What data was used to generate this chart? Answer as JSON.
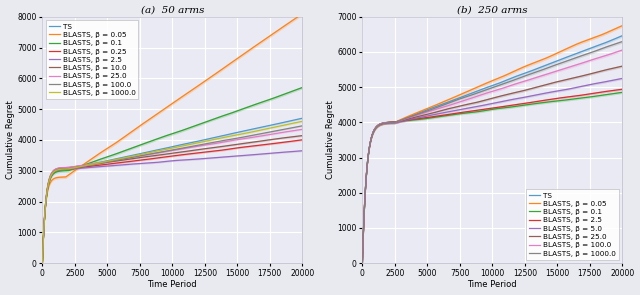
{
  "fig_width": 6.4,
  "fig_height": 2.95,
  "dpi": 100,
  "background_color": "#e8eaf0",
  "subplot_bg": "#eaeaf4",
  "grid_color": "white",
  "T": 20000,
  "subplot_a": {
    "title": "(a)  50 arms",
    "ylabel": "Cumulative Regret",
    "xlabel": "Time Period",
    "ylim": [
      0,
      8000
    ],
    "xlim": [
      0,
      20000
    ],
    "yticks": [
      0,
      1000,
      2000,
      3000,
      4000,
      5000,
      6000,
      7000,
      8000
    ],
    "xticks": [
      0,
      2500,
      5000,
      7500,
      10000,
      12500,
      15000,
      17500,
      20000
    ],
    "series": [
      {
        "label": "TS",
        "color": "#4c96c8",
        "knee": 3050,
        "knee_t": 2000,
        "final": 4700,
        "slope": 0.05,
        "band": 60
      },
      {
        "label": "BLASTS, β = 0.05",
        "color": "#ff7f0e",
        "knee": 2800,
        "knee_t": 1800,
        "final": 8100,
        "slope": 0.35,
        "band": 100
      },
      {
        "label": "BLASTS, β = 0.1",
        "color": "#2ca02c",
        "knee": 3000,
        "knee_t": 2000,
        "final": 5700,
        "slope": 0.18,
        "band": 90
      },
      {
        "label": "BLASTS, β = 0.25",
        "color": "#d62728",
        "knee": 3050,
        "knee_t": 2000,
        "final": 4000,
        "slope": 0.05,
        "band": 60
      },
      {
        "label": "BLASTS, β = 2.5",
        "color": "#9467bd",
        "knee": 3050,
        "knee_t": 2000,
        "final": 3650,
        "slope": 0.03,
        "band": 55
      },
      {
        "label": "BLASTS, β = 10.0",
        "color": "#8c564b",
        "knee": 3100,
        "knee_t": 2000,
        "final": 4150,
        "slope": 0.05,
        "band": 55
      },
      {
        "label": "BLASTS, β = 25.0",
        "color": "#e377c2",
        "knee": 3100,
        "knee_t": 2000,
        "final": 4350,
        "slope": 0.06,
        "band": 60
      },
      {
        "label": "BLASTS, β = 100.0",
        "color": "#7f7f7f",
        "knee": 3050,
        "knee_t": 2000,
        "final": 4450,
        "slope": 0.07,
        "band": 55
      },
      {
        "label": "BLASTS, β = 1000.0",
        "color": "#bcbd22",
        "knee": 3050,
        "knee_t": 2000,
        "final": 4600,
        "slope": 0.08,
        "band": 60
      }
    ],
    "legend_loc": "upper left",
    "legend_fontsize": 5.2
  },
  "subplot_b": {
    "title": "(b)  250 arms",
    "ylabel": "Cumulative Regret",
    "xlabel": "Time Period",
    "ylim": [
      0,
      7000
    ],
    "xlim": [
      0,
      20000
    ],
    "yticks": [
      0,
      1000,
      2000,
      3000,
      4000,
      5000,
      6000,
      7000
    ],
    "xticks": [
      0,
      2500,
      5000,
      7500,
      10000,
      12500,
      15000,
      17500,
      20000
    ],
    "series": [
      {
        "label": "TS",
        "color": "#4c96c8",
        "knee": 4000,
        "knee_t": 2500,
        "final": 6450,
        "slope": 0.13,
        "band": 80
      },
      {
        "label": "BLASTS, β = 0.05",
        "color": "#ff7f0e",
        "knee": 4000,
        "knee_t": 2500,
        "final": 6750,
        "slope": 0.18,
        "band": 90
      },
      {
        "label": "BLASTS, β = 0.1",
        "color": "#2ca02c",
        "knee": 4000,
        "knee_t": 2500,
        "final": 4850,
        "slope": 0.05,
        "band": 70
      },
      {
        "label": "BLASTS, β = 2.5",
        "color": "#d62728",
        "knee": 4000,
        "knee_t": 2500,
        "final": 4950,
        "slope": 0.06,
        "band": 65
      },
      {
        "label": "BLASTS, β = 5.0",
        "color": "#9467bd",
        "knee": 4000,
        "knee_t": 2500,
        "final": 5250,
        "slope": 0.08,
        "band": 65
      },
      {
        "label": "BLASTS, β = 25.0",
        "color": "#8c564b",
        "knee": 4000,
        "knee_t": 2500,
        "final": 5600,
        "slope": 0.1,
        "band": 70
      },
      {
        "label": "BLASTS, β = 100.0",
        "color": "#e377c2",
        "knee": 4000,
        "knee_t": 2500,
        "final": 6050,
        "slope": 0.12,
        "band": 80
      },
      {
        "label": "BLASTS, β = 1000.0",
        "color": "#7f7f7f",
        "knee": 4000,
        "knee_t": 2500,
        "final": 6300,
        "slope": 0.13,
        "band": 80
      }
    ],
    "legend_loc": "lower right",
    "legend_fontsize": 5.2
  }
}
